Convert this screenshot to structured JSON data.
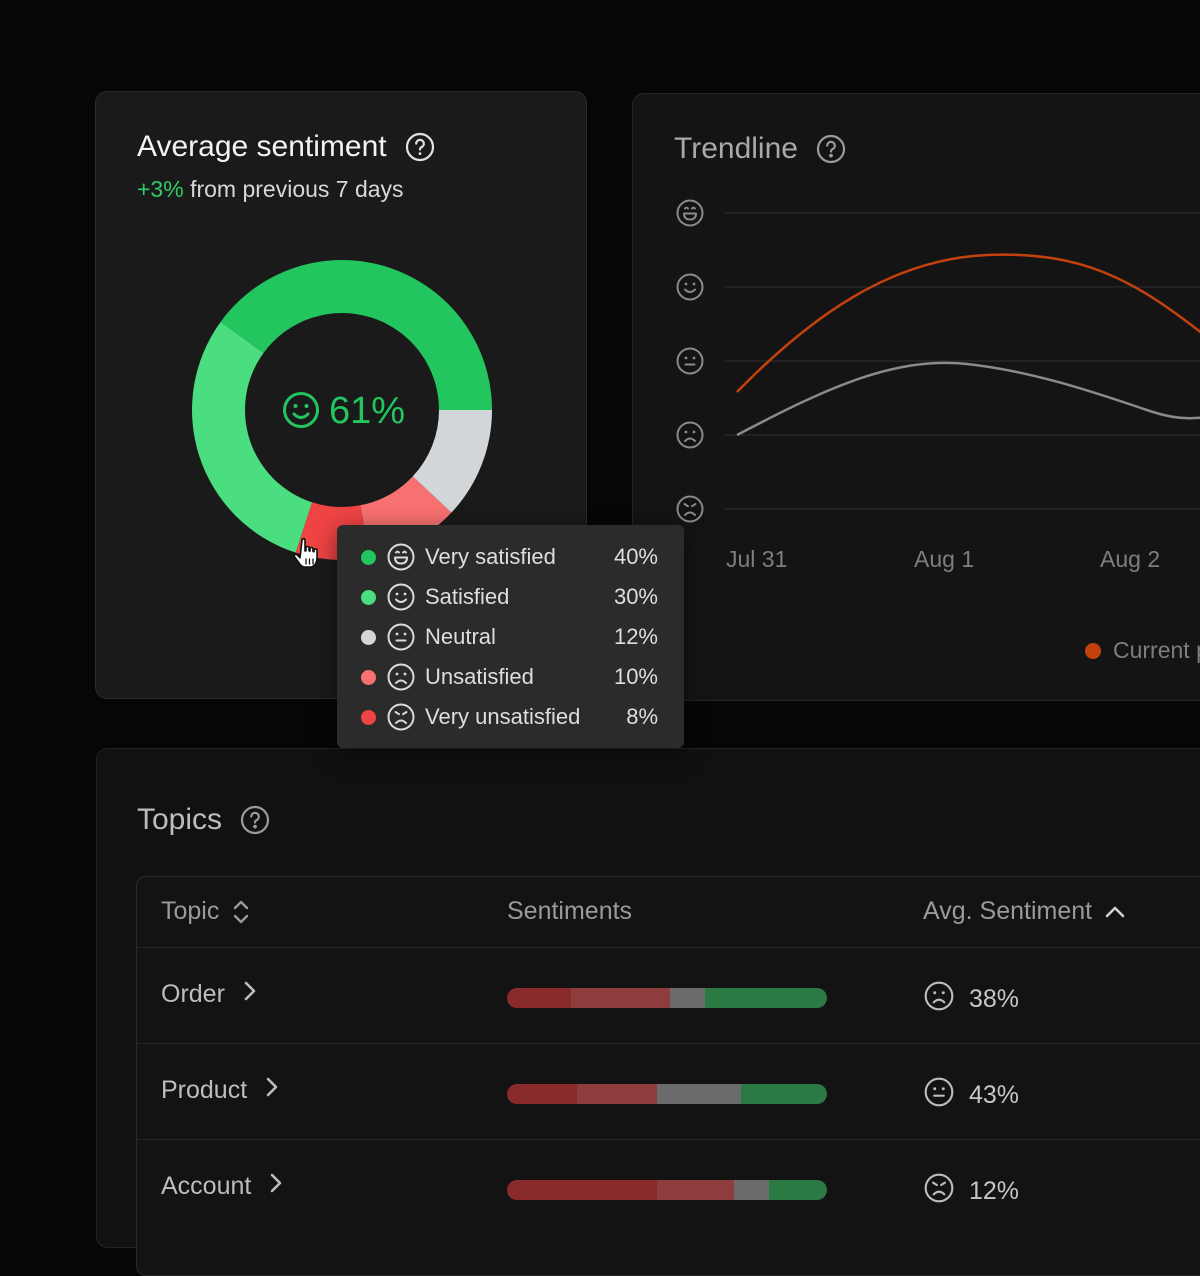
{
  "colors": {
    "very_satisfied": "#22c55e",
    "satisfied": "#4ade80",
    "neutral": "#d4d7d9",
    "unsatisfied": "#f87171",
    "very_unsatisfied": "#ef4444",
    "current_period": "#c2410c",
    "previous_period": "#8a8a8a"
  },
  "average_sentiment": {
    "title": "Average sentiment",
    "delta": "+3%",
    "delta_suffix": "from previous 7 days",
    "center_value": "61%",
    "center_icon": "smile-icon",
    "segments": [
      {
        "label": "Very satisfied",
        "value": 40,
        "display": "40%",
        "color": "#22c55e",
        "icon": "laugh-icon"
      },
      {
        "label": "Satisfied",
        "value": 30,
        "display": "30%",
        "color": "#4ade80",
        "icon": "smile-icon"
      },
      {
        "label": "Neutral",
        "value": 12,
        "display": "12%",
        "color": "#d4d7d9",
        "icon": "meh-icon"
      },
      {
        "label": "Unsatisfied",
        "value": 10,
        "display": "10%",
        "color": "#f87171",
        "icon": "frown-icon"
      },
      {
        "label": "Very unsatisfied",
        "value": 8,
        "display": "8%",
        "color": "#ef4444",
        "icon": "angry-icon"
      }
    ]
  },
  "trendline": {
    "title": "Trendline",
    "x_labels": [
      "Jul 31",
      "Aug 1",
      "Aug 2"
    ],
    "y_icons": [
      "laugh-icon",
      "smile-icon",
      "meh-icon",
      "frown-icon",
      "angry-icon"
    ],
    "legend": {
      "current": "Current p"
    }
  },
  "topics": {
    "title": "Topics",
    "columns": {
      "topic": "Topic",
      "sentiments": "Sentiments",
      "avg": "Avg. Sentiment"
    },
    "rows": [
      {
        "topic": "Order",
        "score": "38%",
        "icon": "frown-icon",
        "bar": [
          20,
          31,
          11,
          38
        ]
      },
      {
        "topic": "Product",
        "score": "43%",
        "icon": "meh-icon",
        "bar": [
          22,
          25,
          26,
          27
        ]
      },
      {
        "topic": "Account",
        "score": "12%",
        "icon": "angry-icon",
        "bar": [
          47,
          24,
          11,
          18
        ]
      }
    ]
  }
}
